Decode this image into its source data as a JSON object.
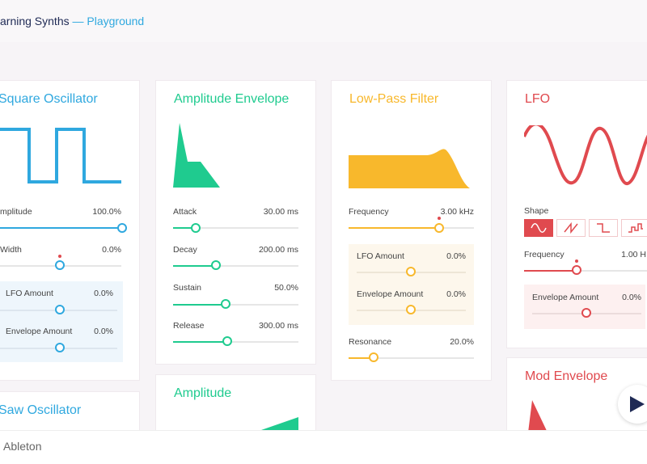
{
  "header": {
    "title": "arning Synths",
    "subtitle": " — Playground"
  },
  "colors": {
    "blue": "#2fa8df",
    "green": "#1fcb8f",
    "yellow": "#f8b82c",
    "red": "#e04a4f"
  },
  "square": {
    "title": "Square Oscillator",
    "amplitude": {
      "label": "mplitude",
      "value": "100.0%",
      "level": 1.0
    },
    "width": {
      "label": "Width",
      "value": "0.0%",
      "level": 0.5
    },
    "lfo": {
      "label": "LFO Amount",
      "value": "0.0%",
      "level": 0.5
    },
    "envelope": {
      "label": "Envelope Amount",
      "value": "0.0%",
      "level": 0.5
    }
  },
  "amp_env": {
    "title": "Amplitude Envelope",
    "attack": {
      "label": "Attack",
      "value": "30.00 ms",
      "level": 0.18
    },
    "decay": {
      "label": "Decay",
      "value": "200.00 ms",
      "level": 0.34
    },
    "sustain": {
      "label": "Sustain",
      "value": "50.0%",
      "level": 0.5
    },
    "release": {
      "label": "Release",
      "value": "300.00 ms",
      "level": 0.43
    }
  },
  "lpf": {
    "title": "Low-Pass Filter",
    "frequency": {
      "label": "Frequency",
      "value": "3.00 kHz",
      "level": 0.72
    },
    "lfo": {
      "label": "LFO Amount",
      "value": "0.0%",
      "level": 0.5
    },
    "envelope": {
      "label": "Envelope Amount",
      "value": "0.0%",
      "level": 0.5
    },
    "resonance": {
      "label": "Resonance",
      "value": "20.0%",
      "level": 0.2
    }
  },
  "lfo": {
    "title": "LFO",
    "shape_label": "Shape",
    "shapes": [
      "sine",
      "sawtooth",
      "square",
      "random"
    ],
    "selected_shape": "sine",
    "frequency": {
      "label": "Frequency",
      "value": "1.00 H",
      "level": 0.4
    },
    "envelope": {
      "label": "Envelope Amount",
      "value": "0.0%",
      "level": 0.5
    }
  },
  "saw": {
    "title": "Saw Oscillator"
  },
  "amplitude": {
    "title": "Amplitude"
  },
  "mod_env": {
    "title": "Mod Envelope"
  },
  "footer": {
    "text": "Ableton"
  },
  "controls": {
    "play_icon": "play-icon"
  }
}
